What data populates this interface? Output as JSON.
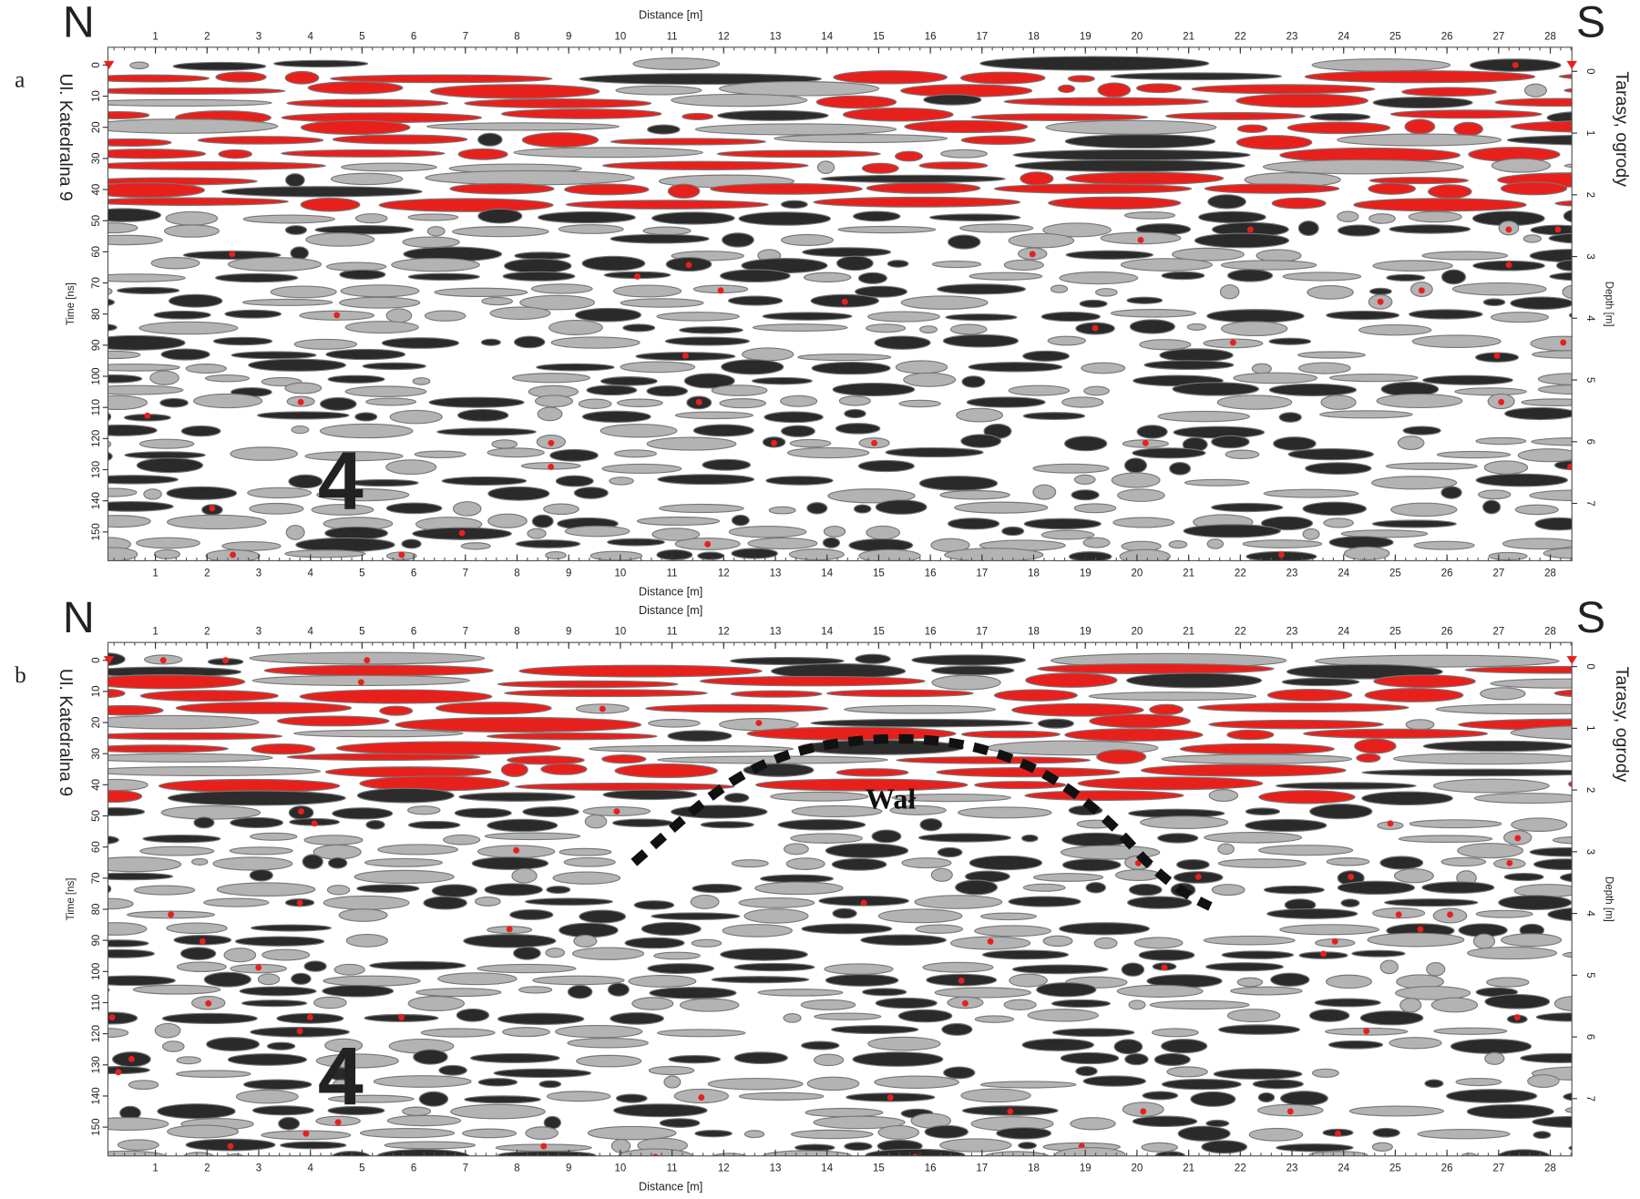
{
  "panels": [
    {
      "label": "a",
      "north": "N",
      "south": "S",
      "left_site": "Ul. Katedralna 9",
      "right_site": "Tarasy, ogrody",
      "x_title_top": "Distance [m]",
      "x_title_bottom": "Distance [m]",
      "y_title": "Time [ns]",
      "y2_title": "Depth [m]",
      "annotations": [
        "4"
      ]
    },
    {
      "label": "b",
      "north": "N",
      "south": "S",
      "left_site": "Ul. Katedralna 9",
      "right_site": "Tarasy, ogrody",
      "x_title_top": "Distance [m]",
      "x_title_bottom": "Distance [m]",
      "y_title": "Time [ns]",
      "y2_title": "Depth [m]",
      "annotations": [
        "4",
        "Wał"
      ]
    }
  ],
  "distance_ticks": [
    1,
    2,
    3,
    4,
    5,
    6,
    7,
    8,
    9,
    10,
    11,
    12,
    13,
    14,
    15,
    16,
    17,
    18,
    19,
    20,
    21,
    22,
    23,
    24,
    25,
    26,
    27,
    28
  ],
  "time_ticks": [
    0,
    10,
    20,
    30,
    40,
    50,
    60,
    70,
    80,
    90,
    100,
    110,
    120,
    130,
    140,
    150
  ],
  "depth_ticks": [
    0,
    1,
    2,
    3,
    4,
    5,
    6,
    7
  ]
}
